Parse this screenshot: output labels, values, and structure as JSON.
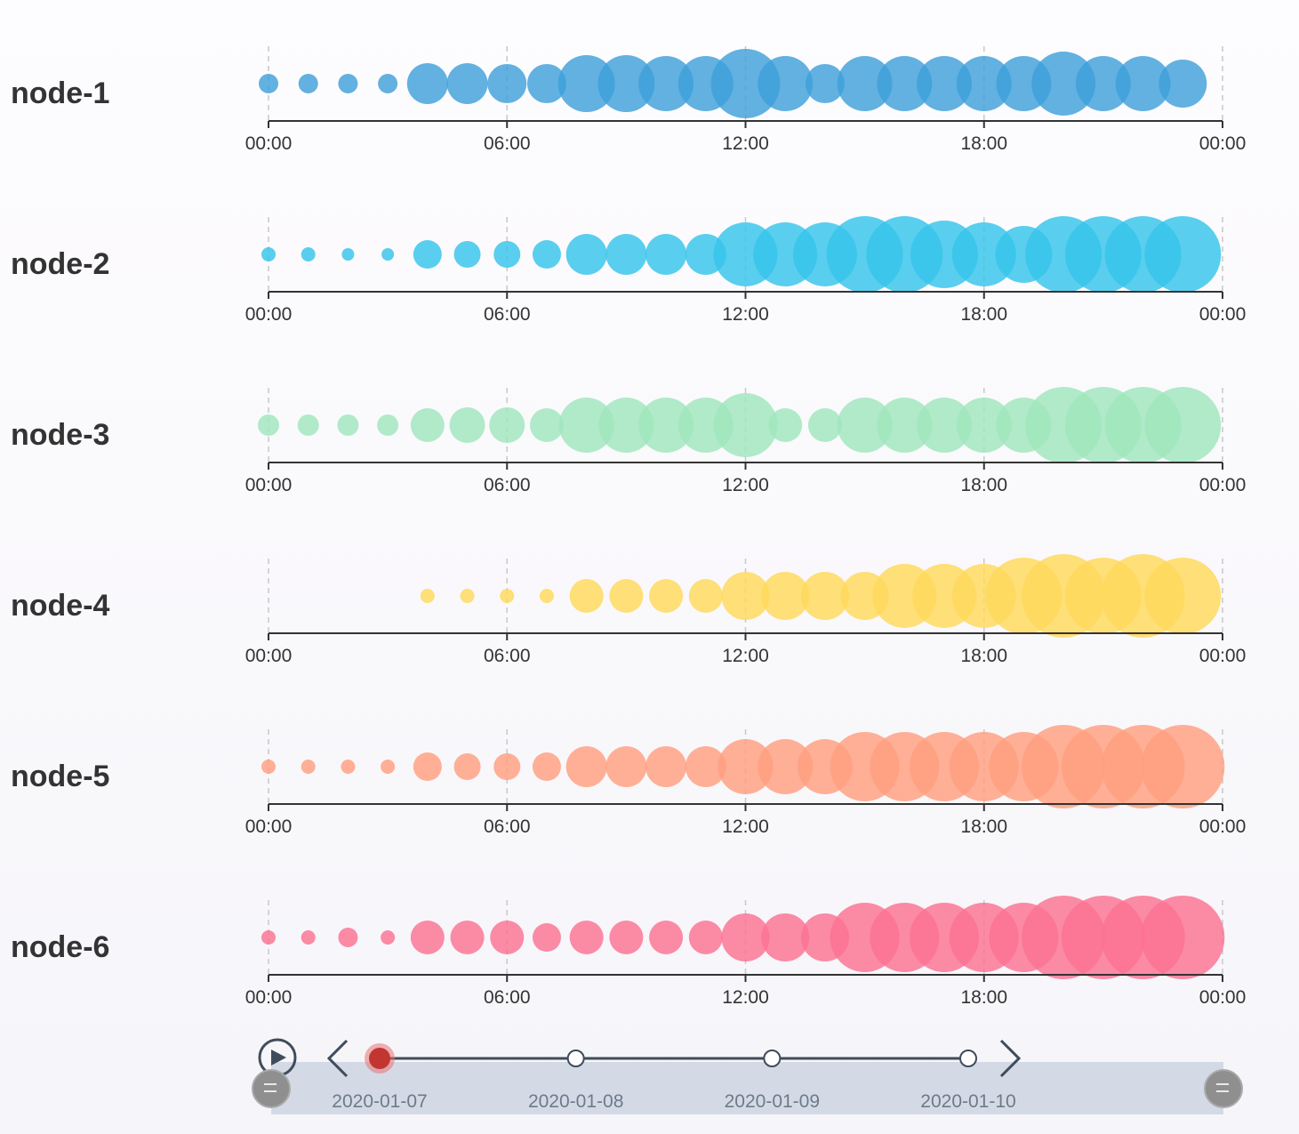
{
  "chart_data": {
    "type": "scatter",
    "x_ticks": [
      "00:00",
      "06:00",
      "12:00",
      "18:00",
      "00:00"
    ],
    "hours": [
      0,
      1,
      2,
      3,
      4,
      5,
      6,
      7,
      8,
      9,
      10,
      11,
      12,
      13,
      14,
      15,
      16,
      17,
      18,
      19,
      20,
      21,
      22,
      23
    ],
    "x_range": [
      0,
      24
    ],
    "grid": true,
    "series": [
      {
        "name": "node-1",
        "color": "#3fa0db",
        "values": [
          11,
          11,
          11,
          11,
          23,
          23,
          22,
          22,
          32,
          32,
          31,
          31,
          39,
          31,
          22,
          31,
          31,
          31,
          31,
          31,
          36,
          31,
          31,
          27
        ]
      },
      {
        "name": "node-2",
        "color": "#36c5ea",
        "values": [
          8,
          8,
          7,
          7,
          16,
          15,
          15,
          16,
          23,
          23,
          23,
          23,
          36,
          36,
          36,
          43,
          43,
          38,
          36,
          32,
          43,
          43,
          43,
          43
        ]
      },
      {
        "name": "node-3",
        "color": "#a0e6bd",
        "values": [
          12,
          12,
          12,
          12,
          19,
          20,
          20,
          19,
          31,
          31,
          31,
          31,
          36,
          19,
          19,
          31,
          31,
          31,
          31,
          31,
          43,
          43,
          43,
          43
        ]
      },
      {
        "name": "node-4",
        "color": "#ffd95a",
        "values": [
          0,
          0,
          0,
          0,
          8,
          8,
          8,
          8,
          19,
          19,
          19,
          19,
          27,
          27,
          27,
          27,
          36,
          36,
          36,
          43,
          47,
          43,
          47,
          43
        ]
      },
      {
        "name": "node-5",
        "color": "#ff9f7f",
        "values": [
          8,
          8,
          8,
          8,
          16,
          15,
          15,
          16,
          23,
          23,
          23,
          23,
          31,
          31,
          31,
          39,
          39,
          39,
          39,
          39,
          47,
          47,
          47,
          47
        ]
      },
      {
        "name": "node-6",
        "color": "#fb7293",
        "values": [
          8,
          8,
          11,
          8,
          19,
          19,
          19,
          16,
          19,
          19,
          19,
          19,
          27,
          27,
          27,
          39,
          39,
          39,
          39,
          39,
          47,
          47,
          47,
          47
        ]
      }
    ]
  },
  "timeline": {
    "dates": [
      "2020-01-07",
      "2020-01-08",
      "2020-01-09",
      "2020-01-10"
    ],
    "current_index": 0,
    "play_icon": "play-icon",
    "prev_icon": "chevron-left-icon",
    "next_icon": "chevron-right-icon",
    "handle_icon": "drag-handle-icon"
  }
}
